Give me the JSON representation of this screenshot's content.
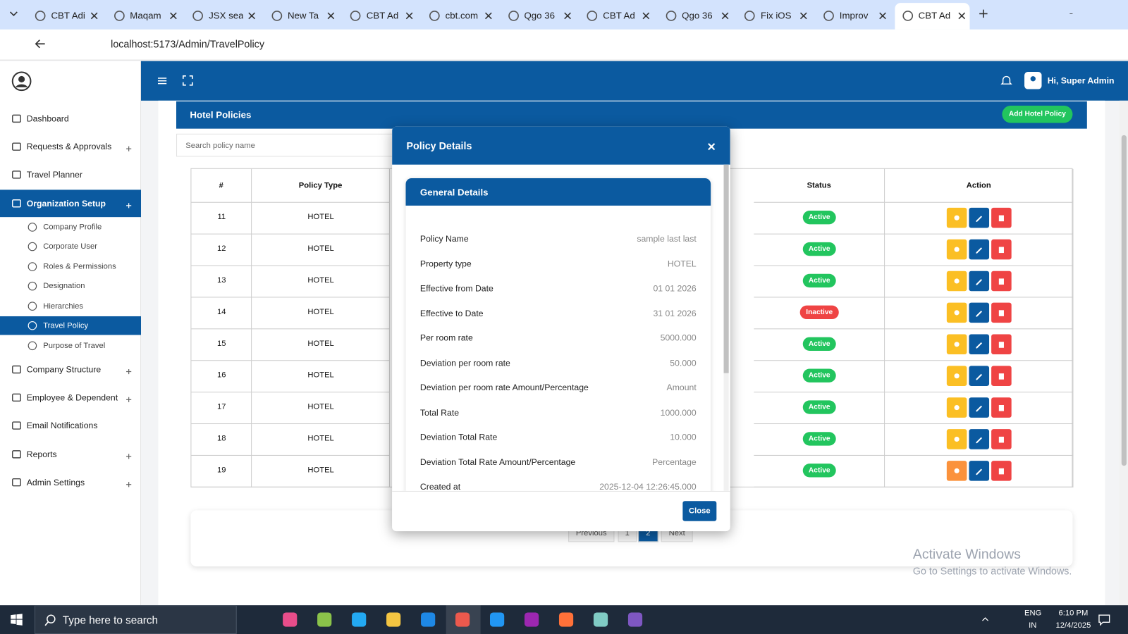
{
  "browser": {
    "tabs": [
      "CBT Adi",
      "Maqam",
      "JSX sea",
      "New Ta",
      "CBT Ad",
      "cbt.com",
      "Qgo 36",
      "CBT Ad",
      "Qgo 36",
      "Fix iOS",
      "Improv",
      "CBT Ad"
    ],
    "url": "localhost:5173/Admin/TravelPolicy"
  },
  "sidebar": {
    "items": [
      {
        "label": "Dashboard"
      },
      {
        "label": "Requests & Approvals"
      },
      {
        "label": "Travel Planner"
      },
      {
        "label": "Organization Setup",
        "children": [
          "Company Profile",
          "Corporate User",
          "Roles & Permissions",
          "Designation",
          "Hierarchies",
          "Travel Policy",
          "Purpose of Travel"
        ]
      },
      {
        "label": "Company Structure"
      },
      {
        "label": "Employee & Dependent"
      },
      {
        "label": "Email Notifications"
      },
      {
        "label": "Reports"
      },
      {
        "label": "Admin Settings"
      }
    ]
  },
  "header": {
    "greeting": "Hi, Super Admin"
  },
  "page": {
    "title": "Hotel Policies",
    "add_button": "Add Hotel Policy",
    "search_placeholder": "Search policy name",
    "table": {
      "columns": [
        "#",
        "Policy Type",
        "Status",
        "Action"
      ],
      "rows": [
        [
          11,
          "HOTEL",
          "Active"
        ],
        [
          12,
          "HOTEL",
          "Active"
        ],
        [
          13,
          "HOTEL",
          "Active"
        ],
        [
          14,
          "HOTEL",
          "Inactive"
        ],
        [
          15,
          "HOTEL",
          "Active"
        ],
        [
          16,
          "HOTEL",
          "Active"
        ],
        [
          17,
          "HOTEL",
          "Active"
        ],
        [
          18,
          "HOTEL",
          "Active"
        ],
        [
          19,
          "HOTEL",
          "Active"
        ]
      ]
    },
    "pagination": [
      "Previous",
      "1",
      "2",
      "Next"
    ]
  },
  "modal": {
    "title": "Policy Details",
    "section": "General Details",
    "fields": [
      [
        "Policy Name",
        "sample last last"
      ],
      [
        "Property type",
        "HOTEL"
      ],
      [
        "Effective from Date",
        "01 01 2026"
      ],
      [
        "Effective to Date",
        "31 01 2026"
      ],
      [
        "Per room rate",
        "5000.000"
      ],
      [
        "Deviation per room rate",
        "50.000"
      ],
      [
        "Deviation per room rate Amount/Percentage",
        "Amount"
      ],
      [
        "Total Rate",
        "1000.000"
      ],
      [
        "Deviation Total Rate",
        "10.000"
      ],
      [
        "Deviation Total Rate Amount/Percentage",
        "Percentage"
      ],
      [
        "Created at",
        "2025-12-04 12:26:45.000"
      ]
    ],
    "close_button": "Close"
  },
  "watermark": {
    "title": "Activate Windows",
    "subtitle": "Go to Settings to activate Windows."
  },
  "taskbar": {
    "search": "Type here to search",
    "lang": "ENG",
    "region": "IN",
    "time": "6:10 PM",
    "date": "12/4/2025"
  }
}
